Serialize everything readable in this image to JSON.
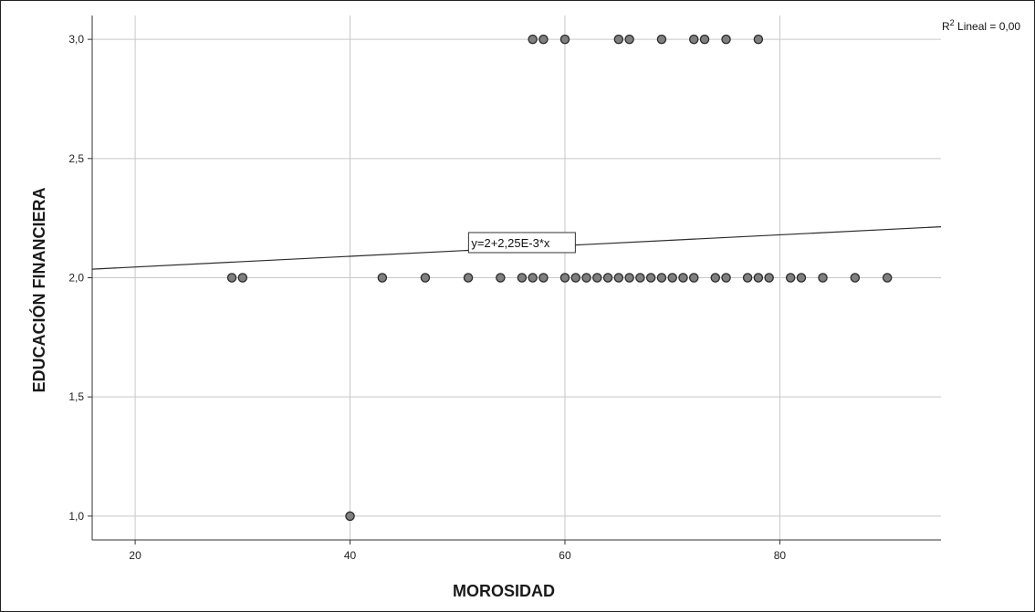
{
  "chart_data": {
    "type": "scatter",
    "xlabel": "MOROSIDAD",
    "ylabel": "EDUCACIÓN FINANCIERA",
    "xlim": [
      16,
      95
    ],
    "ylim": [
      0.9,
      3.1
    ],
    "xticks": [
      20,
      40,
      60,
      80
    ],
    "yticks": [
      1.0,
      1.5,
      2.0,
      2.5,
      3.0
    ],
    "xtick_labels": [
      "20",
      "40",
      "60",
      "80"
    ],
    "ytick_labels": [
      "1,0",
      "1,5",
      "2,0",
      "2,5",
      "3,0"
    ],
    "grid": true,
    "r2_label": {
      "prefix": "R",
      "sup": "2",
      "rest": " Lineal = 0,00"
    },
    "fit_line": {
      "intercept": 2.0,
      "slope": 0.00225,
      "label": "y=2+2,25E-3*x"
    },
    "points": [
      {
        "x": 40,
        "y": 1.0
      },
      {
        "x": 29,
        "y": 2.0
      },
      {
        "x": 30,
        "y": 2.0
      },
      {
        "x": 43,
        "y": 2.0
      },
      {
        "x": 47,
        "y": 2.0
      },
      {
        "x": 51,
        "y": 2.0
      },
      {
        "x": 54,
        "y": 2.0
      },
      {
        "x": 56,
        "y": 2.0
      },
      {
        "x": 57,
        "y": 2.0
      },
      {
        "x": 58,
        "y": 2.0
      },
      {
        "x": 60,
        "y": 2.0
      },
      {
        "x": 61,
        "y": 2.0
      },
      {
        "x": 62,
        "y": 2.0
      },
      {
        "x": 63,
        "y": 2.0
      },
      {
        "x": 64,
        "y": 2.0
      },
      {
        "x": 65,
        "y": 2.0
      },
      {
        "x": 66,
        "y": 2.0
      },
      {
        "x": 67,
        "y": 2.0
      },
      {
        "x": 68,
        "y": 2.0
      },
      {
        "x": 69,
        "y": 2.0
      },
      {
        "x": 70,
        "y": 2.0
      },
      {
        "x": 71,
        "y": 2.0
      },
      {
        "x": 72,
        "y": 2.0
      },
      {
        "x": 74,
        "y": 2.0
      },
      {
        "x": 75,
        "y": 2.0
      },
      {
        "x": 77,
        "y": 2.0
      },
      {
        "x": 78,
        "y": 2.0
      },
      {
        "x": 79,
        "y": 2.0
      },
      {
        "x": 81,
        "y": 2.0
      },
      {
        "x": 82,
        "y": 2.0
      },
      {
        "x": 84,
        "y": 2.0
      },
      {
        "x": 87,
        "y": 2.0
      },
      {
        "x": 90,
        "y": 2.0
      },
      {
        "x": 57,
        "y": 3.0
      },
      {
        "x": 58,
        "y": 3.0
      },
      {
        "x": 60,
        "y": 3.0
      },
      {
        "x": 65,
        "y": 3.0
      },
      {
        "x": 66,
        "y": 3.0
      },
      {
        "x": 69,
        "y": 3.0
      },
      {
        "x": 72,
        "y": 3.0
      },
      {
        "x": 73,
        "y": 3.0
      },
      {
        "x": 75,
        "y": 3.0
      },
      {
        "x": 78,
        "y": 3.0
      }
    ]
  },
  "colors": {
    "grid": "#c8c8c8",
    "axis": "#333333",
    "marker_fill": "#7f7f7f",
    "marker_stroke": "#2b2b2b",
    "fit_line": "#2b2b2b",
    "frame": "#222222"
  }
}
